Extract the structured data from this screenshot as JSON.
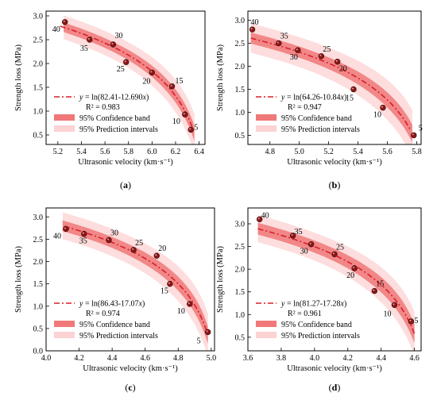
{
  "colors": {
    "line": "#d81e2c",
    "confidence_band": "#f07878",
    "prediction_band": "#fcd2d2",
    "point": "#8a1818",
    "frame": "#000000"
  },
  "chart_data": [
    {
      "type": "scatter",
      "panel_label": "(a)",
      "xlabel": "Ultrasonic velocity (km·s⁻¹)",
      "ylabel": "Strength loss (MPa)",
      "xlim": [
        5.1,
        6.45
      ],
      "ylim": [
        0.3,
        3.1
      ],
      "xticks": [
        "5.2",
        "5.4",
        "5.6",
        "5.8",
        "6.0",
        "6.2",
        "6.4"
      ],
      "xtick_values": [
        5.2,
        5.4,
        5.6,
        5.8,
        6.0,
        6.2,
        6.4
      ],
      "yticks": [
        "0.5",
        "1.0",
        "1.5",
        "2.0",
        "2.5",
        "3.0"
      ],
      "ytick_values": [
        0.5,
        1.0,
        1.5,
        2.0,
        2.5,
        3.0
      ],
      "fit": {
        "a": 82.41,
        "b": 12.69
      },
      "fit_xrange": [
        5.22,
        6.34
      ],
      "band_xrange": [
        5.25,
        6.36
      ],
      "ci_half": 0.1,
      "pi_half": 0.25,
      "points": [
        {
          "x": 5.26,
          "y": 2.87,
          "label": "40"
        },
        {
          "x": 5.47,
          "y": 2.5,
          "label": "35"
        },
        {
          "x": 5.67,
          "y": 2.4,
          "label": "30"
        },
        {
          "x": 5.78,
          "y": 2.03,
          "label": "25"
        },
        {
          "x": 6.0,
          "y": 1.81,
          "label": "20"
        },
        {
          "x": 6.17,
          "y": 1.52,
          "label": "15"
        },
        {
          "x": 6.28,
          "y": 0.93,
          "label": "10"
        },
        {
          "x": 6.33,
          "y": 0.61,
          "label": "5"
        }
      ],
      "legend": {
        "equation": "y = ln(82.41-12.690x)",
        "r2": "R² = 0.983",
        "ci": "95% Confidence band",
        "pi": "95% Prediction intervals"
      }
    },
    {
      "type": "scatter",
      "panel_label": "(b)",
      "xlabel": "Ultrasonic velocity (km·s⁻¹)",
      "ylabel": "Strength loss (MPa)",
      "xlim": [
        4.65,
        5.83
      ],
      "ylim": [
        0.3,
        3.2
      ],
      "xticks": [
        "4.6",
        "4.8",
        "5.0",
        "5.2",
        "5.4",
        "5.6",
        "5.8"
      ],
      "xtick_values": [
        4.6,
        4.8,
        5.0,
        5.2,
        5.4,
        5.6,
        5.8
      ],
      "yticks": [
        "0.5",
        "1.0",
        "1.5",
        "2.0",
        "2.5",
        "3.0"
      ],
      "ytick_values": [
        0.5,
        1.0,
        1.5,
        2.0,
        2.5,
        3.0
      ],
      "fit": {
        "a": 64.26,
        "b": 10.84
      },
      "fit_xrange": [
        4.67,
        5.76
      ],
      "band_xrange": [
        4.67,
        5.77
      ],
      "ci_half": 0.12,
      "pi_half": 0.32,
      "points": [
        {
          "x": 4.68,
          "y": 2.8,
          "label": "40"
        },
        {
          "x": 4.86,
          "y": 2.5,
          "label": "35"
        },
        {
          "x": 4.99,
          "y": 2.35,
          "label": "30"
        },
        {
          "x": 5.15,
          "y": 2.22,
          "label": "25"
        },
        {
          "x": 5.26,
          "y": 2.1,
          "label": "20"
        },
        {
          "x": 5.37,
          "y": 1.5,
          "label": "15"
        },
        {
          "x": 5.57,
          "y": 1.1,
          "label": "10"
        },
        {
          "x": 5.78,
          "y": 0.5,
          "label": "5"
        }
      ],
      "legend": {
        "equation": "y = ln(64.26-10.84x)",
        "r2": "R² = 0.947",
        "ci": "95% Confidence band",
        "pi": "95% Prediction intervals"
      }
    },
    {
      "type": "scatter",
      "panel_label": "(c)",
      "xlabel": "Ultrasonic velocity (km·s⁻¹)",
      "ylabel": "Strength loss (MPa)",
      "xlim": [
        4.0,
        5.02
      ],
      "ylim": [
        0.0,
        3.2
      ],
      "xticks": [
        "4.0",
        "4.2",
        "4.4",
        "4.6",
        "4.8",
        "5.0"
      ],
      "xtick_values": [
        4.0,
        4.2,
        4.4,
        4.6,
        4.8,
        5.0
      ],
      "yticks": [
        "0.0",
        "0.5",
        "1.0",
        "1.5",
        "2.0",
        "2.5",
        "3.0"
      ],
      "ytick_values": [
        0.0,
        0.5,
        1.0,
        1.5,
        2.0,
        2.5,
        3.0
      ],
      "fit": {
        "a": 86.43,
        "b": 17.07
      },
      "fit_xrange": [
        4.11,
        4.97
      ],
      "band_xrange": [
        4.1,
        4.98
      ],
      "ci_half": 0.12,
      "pi_half": 0.3,
      "points": [
        {
          "x": 4.12,
          "y": 2.73,
          "label": "40"
        },
        {
          "x": 4.23,
          "y": 2.62,
          "label": "35"
        },
        {
          "x": 4.38,
          "y": 2.48,
          "label": "30"
        },
        {
          "x": 4.53,
          "y": 2.26,
          "label": "25"
        },
        {
          "x": 4.67,
          "y": 2.13,
          "label": "20"
        },
        {
          "x": 4.75,
          "y": 1.5,
          "label": "15"
        },
        {
          "x": 4.87,
          "y": 1.05,
          "label": "10"
        },
        {
          "x": 4.98,
          "y": 0.42,
          "label": "5"
        }
      ],
      "legend": {
        "equation": "y = ln(86.43-17.07x)",
        "r2": "R² = 0.974",
        "ci": "95% Confidence band",
        "pi": "95% Prediction intervals"
      }
    },
    {
      "type": "scatter",
      "panel_label": "(d)",
      "xlabel": "Ultrasonic velocity (km·s⁻¹)",
      "ylabel": "Strength loss (MPa)",
      "xlim": [
        3.6,
        4.64
      ],
      "ylim": [
        0.2,
        3.35
      ],
      "xticks": [
        "3.6",
        "3.8",
        "4.0",
        "4.2",
        "4.4",
        "4.6"
      ],
      "xtick_values": [
        3.6,
        3.8,
        4.0,
        4.2,
        4.4,
        4.6
      ],
      "yticks": [
        "0.5",
        "1.0",
        "1.5",
        "2.0",
        "2.5",
        "3.0"
      ],
      "ytick_values": [
        0.5,
        1.0,
        1.5,
        2.0,
        2.5,
        3.0
      ],
      "fit": {
        "a": 81.27,
        "b": 17.28
      },
      "fit_xrange": [
        3.66,
        4.6
      ],
      "band_xrange": [
        3.66,
        4.6
      ],
      "ci_half": 0.13,
      "pi_half": 0.3,
      "points": [
        {
          "x": 3.67,
          "y": 3.1,
          "label": "40"
        },
        {
          "x": 3.87,
          "y": 2.74,
          "label": "35"
        },
        {
          "x": 3.98,
          "y": 2.55,
          "label": "30"
        },
        {
          "x": 4.12,
          "y": 2.33,
          "label": "25"
        },
        {
          "x": 4.24,
          "y": 2.02,
          "label": "20"
        },
        {
          "x": 4.36,
          "y": 1.52,
          "label": "15"
        },
        {
          "x": 4.48,
          "y": 1.21,
          "label": "10"
        },
        {
          "x": 4.58,
          "y": 0.85,
          "label": "5"
        }
      ],
      "legend": {
        "equation": "y = ln(81.27-17.28x)",
        "r2": "R² = 0.961",
        "ci": "95% Confidence band",
        "pi": "95% Prediction intervals"
      }
    }
  ]
}
